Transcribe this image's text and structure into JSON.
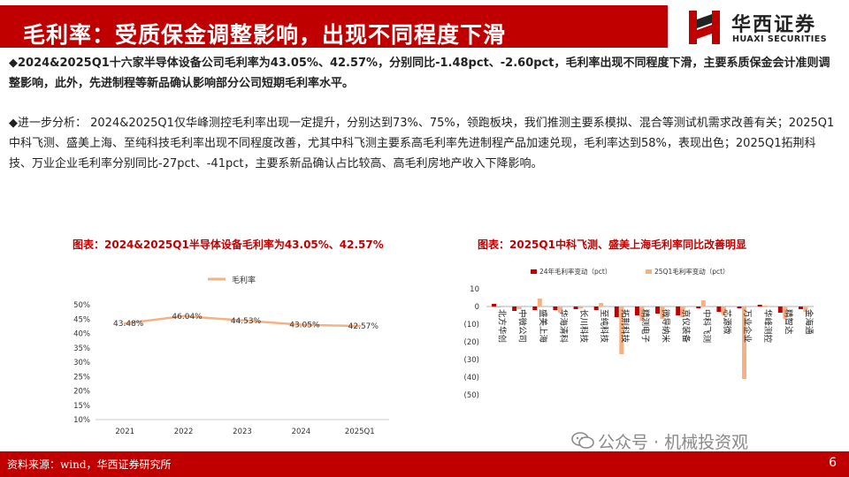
{
  "header": {
    "title": "毛利率：受质保金调整影响，出现不同程度下滑",
    "logo_cn": "华西证券",
    "logo_en": "HUAXI SECURITIES",
    "brand_color": "#c00000"
  },
  "paragraphs": {
    "p1": "◆2024&2025Q1十六家半导体设备公司毛利率为43.05%、42.57%，分别同比-1.48pct、-2.60pct，毛利率出现不同程度下滑，主要系质保金会计准则调整影响，此外，先进制程等新品确认影响部分公司短期毛利率水平。",
    "p2": "◆进一步分析： 2024&2025Q1仅华峰测控毛利率出现一定提升，分别达到73%、75%，领跑板块，我们推测主要系模拟、混合等测试机需求改善有关；2025Q1中科飞测、盛美上海、至纯科技毛利率出现不同程度改善，尤其中科飞测主要系高毛利率先进制程产品加速兑现，毛利率达到58%，表现出色；2025Q1拓荆科技、万业企业毛利率分别同比-27pct、-41pct，主要系新品确认占比较高、高毛利房地产收入下降影响。"
  },
  "chart_data": [
    {
      "type": "line",
      "title": "图表：2024&2025Q1半导体设备毛利率为43.05%、42.57%",
      "legend": "毛利率",
      "categories": [
        "2021",
        "2022",
        "2023",
        "2024",
        "2025Q1"
      ],
      "values": [
        43.48,
        46.04,
        44.53,
        43.05,
        42.57
      ],
      "data_labels": [
        "43.48%",
        "46.04%",
        "44.53%",
        "43.05%",
        "42.57%"
      ],
      "y_ticks": [
        "50%",
        "45%",
        "40%",
        "35%",
        "30%",
        "25%",
        "20%",
        "15%",
        "10%"
      ],
      "ylim": [
        10,
        50
      ],
      "color": "#f4b183"
    },
    {
      "type": "bar",
      "title": "图表：2025Q1中科飞测、盛美上海毛利率同比改善明显",
      "categories": [
        "北方华创",
        "中微公司",
        "盛美上海",
        "华海清科",
        "长川科技",
        "至纯科技",
        "拓荆科技",
        "精测电子",
        "微导纳米",
        "京仪装备",
        "中科飞测",
        "芯源微",
        "万业企业",
        "华峰测控",
        "精智达",
        "金海通"
      ],
      "series": [
        {
          "name": "24年毛利率变动（pct）",
          "color": "#c00000",
          "values": [
            1.5,
            -2.5,
            -2.0,
            -2.0,
            -1.5,
            -2.0,
            -6.0,
            -5.0,
            -4.0,
            -5.0,
            -1.0,
            -3.0,
            -1.0,
            1.0,
            -3.5,
            -1.5
          ]
        },
        {
          "name": "25Q1毛利率变动（pct）",
          "color": "#f4b183",
          "values": [
            -0.5,
            -1.5,
            4.5,
            -3.5,
            -1.0,
            2.0,
            -27.0,
            -8.0,
            -7.0,
            -6.0,
            3.5,
            -5.0,
            -41.0,
            0.5,
            -7.0,
            -3.0
          ]
        }
      ],
      "y_ticks": [
        "10",
        "0",
        "(10)",
        "(20)",
        "(30)",
        "(40)",
        "(50)"
      ],
      "ylim": [
        -50,
        10
      ]
    }
  ],
  "watermark": "公众号 · 机械投资观",
  "footer": {
    "source": "资料来源：wind，华西证券研究所",
    "page": "6"
  }
}
